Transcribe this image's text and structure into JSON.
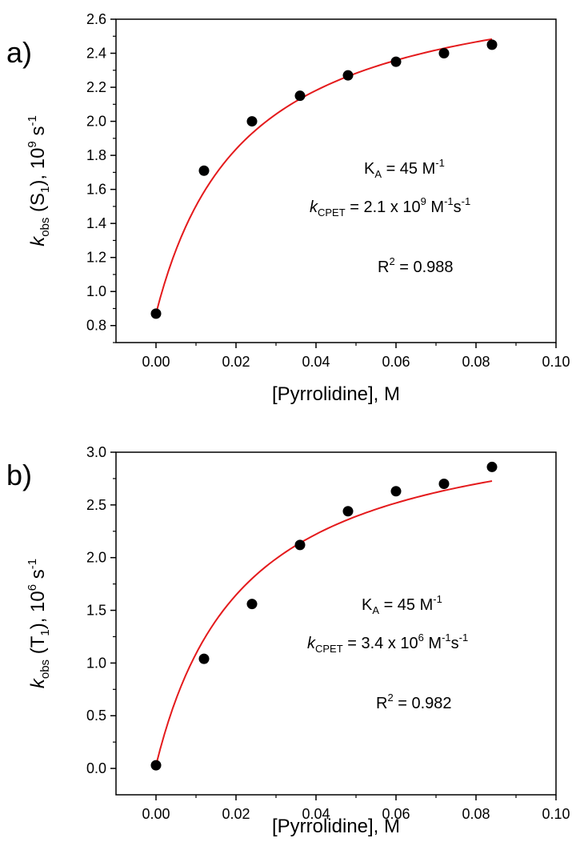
{
  "chart_data": [
    {
      "type": "scatter",
      "panel_label": "a)",
      "xlabel": "[Pyrrolidine], M",
      "ylabel": {
        "k": "k",
        "sub": "obs",
        "mid": " (S",
        "sub2": "1",
        "tail": "), 10",
        "sup": "9",
        "unit": " s",
        "unit_sup": "-1"
      },
      "xlim": [
        -0.01,
        0.1
      ],
      "ylim": [
        0.7,
        2.6
      ],
      "x_ticks": [
        0.0,
        0.02,
        0.04,
        0.06,
        0.08,
        0.1
      ],
      "x_tick_labels": [
        "0.00",
        "0.02",
        "0.04",
        "0.06",
        "0.08",
        "0.10"
      ],
      "y_ticks": [
        0.8,
        1.0,
        1.2,
        1.4,
        1.6,
        1.8,
        2.0,
        2.2,
        2.4,
        2.6
      ],
      "y_tick_labels": [
        "0.8",
        "1.0",
        "1.2",
        "1.4",
        "1.6",
        "1.8",
        "2.0",
        "2.2",
        "2.4",
        "2.6"
      ],
      "points": {
        "x": [
          0.0,
          0.012,
          0.024,
          0.036,
          0.048,
          0.06,
          0.072,
          0.084
        ],
        "y": [
          0.87,
          1.71,
          2.0,
          2.15,
          2.27,
          2.35,
          2.4,
          2.45
        ]
      },
      "fit": {
        "color": "#e41a1c",
        "y0": 0.87,
        "K": 45,
        "scale": 2.04,
        "x_range": [
          0.0,
          0.084
        ]
      },
      "annotations": {
        "ka": {
          "pre": "K",
          "sub": "A",
          "mid": " = 45 M",
          "sup": "-1"
        },
        "kcpet": {
          "k": "k",
          "sub": "CPET",
          "mid": " = 2.1 x 10",
          "sup": "9",
          "mid2": " M",
          "sup2": "-1",
          "mid3": "s",
          "sup3": "-1"
        },
        "r2": {
          "pre": "R",
          "sup": "2",
          "mid": " = 0.988"
        }
      },
      "grid": false
    },
    {
      "type": "scatter",
      "panel_label": "b)",
      "xlabel": "[Pyrrolidine], M",
      "ylabel": {
        "k": "k",
        "sub": "obs",
        "mid": " (T",
        "sub2": "1",
        "tail": "), 10",
        "sup": "6",
        "unit": " s",
        "unit_sup": "-1"
      },
      "xlim": [
        -0.01,
        0.1
      ],
      "ylim": [
        -0.25,
        3.0
      ],
      "x_ticks": [
        0.0,
        0.02,
        0.04,
        0.06,
        0.08,
        0.1
      ],
      "x_tick_labels": [
        "0.00",
        "0.02",
        "0.04",
        "0.06",
        "0.08",
        "0.10"
      ],
      "y_ticks": [
        0.0,
        0.5,
        1.0,
        1.5,
        2.0,
        2.5,
        3.0
      ],
      "y_tick_labels": [
        "0.0",
        "0.5",
        "1.0",
        "1.5",
        "2.0",
        "2.5",
        "3.0"
      ],
      "points": {
        "x": [
          0.0,
          0.012,
          0.024,
          0.036,
          0.048,
          0.06,
          0.072,
          0.084
        ],
        "y": [
          0.03,
          1.04,
          1.56,
          2.12,
          2.44,
          2.63,
          2.7,
          2.86
        ]
      },
      "fit": {
        "color": "#e41a1c",
        "y0": 0.03,
        "K": 45,
        "scale": 3.41,
        "x_range": [
          0.0,
          0.084
        ]
      },
      "annotations": {
        "ka": {
          "pre": "K",
          "sub": "A",
          "mid": " = 45 M",
          "sup": "-1"
        },
        "kcpet": {
          "k": "k",
          "sub": "CPET",
          "mid": " = 3.4 x 10",
          "sup": "6",
          "mid2": " M",
          "sup2": "-1",
          "mid3": "s",
          "sup3": "-1"
        },
        "r2": {
          "pre": "R",
          "sup": "2",
          "mid": " = 0.982"
        }
      },
      "grid": false
    }
  ]
}
